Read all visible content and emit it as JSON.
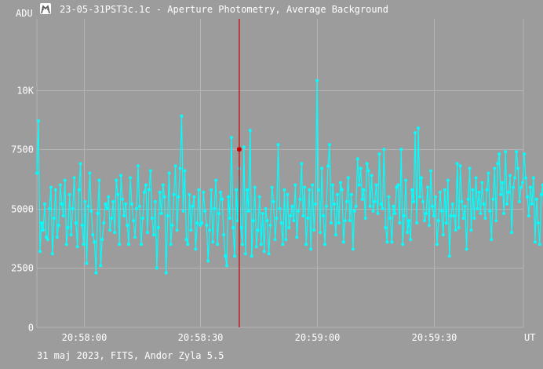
{
  "window": {
    "title": "23-05-31PST3c.1c - Aperture Photometry, Average Background",
    "icon": "telescope-app-icon"
  },
  "footer": {
    "caption": "31 maj 2023, FITS, Andor Zyla 5.5"
  },
  "colors": {
    "background": "#9c9c9c",
    "grid": "#b4b4b4",
    "series": "#00ffff",
    "cursor": "#cc0000"
  },
  "chart_data": {
    "type": "line",
    "title": "",
    "xlabel": "UT",
    "ylabel": "ADU",
    "xlim": [
      "20:57:48",
      "20:59:53"
    ],
    "ylim": [
      0,
      13000
    ],
    "grid": true,
    "x_ticks": [
      "20:58:00",
      "20:58:30",
      "20:59:00",
      "20:59:30"
    ],
    "y_ticks": [
      {
        "value": 0,
        "label": "0"
      },
      {
        "value": 2500,
        "label": "2500"
      },
      {
        "value": 5000,
        "label": "5000"
      },
      {
        "value": 7500,
        "label": "7500"
      },
      {
        "value": 10000,
        "label": "10K"
      }
    ],
    "cursor": {
      "x": "20:58:40",
      "y": 7500
    },
    "series": [
      {
        "x_start": "20:57:48",
        "x_step_seconds": 0.4,
        "values": [
          6500,
          8700,
          3200,
          4400,
          4100,
          5200,
          3800,
          3700,
          5000,
          5900,
          3100,
          4600,
          5800,
          3800,
          4300,
          6000,
          5200,
          4700,
          6200,
          3500,
          4200,
          5600,
          3900,
          5000,
          6300,
          4400,
          3400,
          5800,
          6900,
          4300,
          3500,
          5300,
          2700,
          5100,
          6500,
          4900,
          3900,
          3600,
          2300,
          4800,
          6200,
          2600,
          3700,
          4400,
          5200,
          5000,
          5500,
          4100,
          4600,
          5300,
          4000,
          6200,
          5600,
          3500,
          6400,
          5400,
          4700,
          5200,
          4300,
          3500,
          6300,
          5200,
          4500,
          3800,
          5000,
          6800,
          5100,
          3500,
          4600,
          5700,
          6000,
          4000,
          5800,
          6600,
          4600,
          3900,
          5300,
          2500,
          4200,
          5700,
          4800,
          6000,
          5500,
          2300,
          4700,
          6500,
          3500,
          4300,
          5600,
          6800,
          4100,
          5500,
          6700,
          8900,
          4900,
          6600,
          3700,
          3500,
          5600,
          4100,
          5100,
          5500,
          3300,
          4400,
          5800,
          4300,
          4400,
          5700,
          4900,
          4300,
          2800,
          4100,
          5800,
          3600,
          5000,
          6200,
          3500,
          4800,
          5700,
          5400,
          3900,
          3000,
          2600,
          5500,
          4600,
          8000,
          4200,
          3000,
          5800,
          4500,
          6700,
          4200,
          3500,
          7600,
          3100,
          5800,
          4900,
          8300,
          3000,
          4500,
          5900,
          3400,
          4100,
          5500,
          3500,
          4800,
          3200,
          5000,
          4500,
          3100,
          4300,
          5900,
          5300,
          3700,
          4600,
          7700,
          5000,
          4400,
          3500,
          5800,
          3700,
          5600,
          4200,
          4700,
          5100,
          4500,
          6000,
          3800,
          4900,
          5400,
          6900,
          4700,
          5900,
          3500,
          4600,
          5800,
          3300,
          6000,
          4100,
          5200,
          10400,
          5800,
          4000,
          6700,
          4700,
          3500,
          5100,
          6800,
          7700,
          4400,
          6000,
          5200,
          3900,
          5600,
          4400,
          6100,
          5800,
          3600,
          4500,
          5300,
          6300,
          4500,
          5600,
          3300,
          4900,
          5100,
          7100,
          6000,
          6700,
          5400,
          5800,
          4600,
          6900,
          6600,
          5100,
          6400,
          4900,
          5300,
          6000,
          4800,
          7300,
          5200,
          5000,
          7500,
          4200,
          3600,
          5500,
          4600,
          3600,
          5100,
          4800,
          5900,
          6000,
          4400,
          7500,
          3500,
          4700,
          6200,
          4000,
          4500,
          3700,
          5800,
          5300,
          8200,
          4400,
          8400,
          5500,
          6300,
          5300,
          4500,
          4800,
          5900,
          4300,
          6600,
          5100,
          4700,
          5500,
          3500,
          4500,
          5700,
          4900,
          3900,
          5800,
          4400,
          6200,
          3000,
          4700,
          5200,
          4700,
          4100,
          6900,
          4200,
          6800,
          5300,
          4600,
          5100,
          3300,
          5400,
          6700,
          4100,
          5800,
          4600,
          6300,
          5000,
          5700,
          4800,
          6100,
          5200,
          4600,
          5800,
          6500,
          4900,
          3700,
          5400,
          6700,
          4500,
          6900,
          7300,
          5600,
          6100,
          4800,
          7400,
          5200,
          5700,
          6400,
          4000,
          5900,
          6300,
          7400,
          6700,
          5300,
          5900,
          6100,
          7300,
          6300,
          5500,
          4700,
          5900,
          5200,
          6300,
          3600,
          5400,
          4400,
          3500,
          5600,
          6000,
          3600,
          6300,
          8200,
          7900,
          5700,
          8900,
          4200,
          6300,
          3600,
          5000,
          4600,
          2800,
          4000,
          5500,
          6100,
          4500,
          5800,
          4200,
          6600,
          5700,
          4800,
          5900,
          3500,
          6800,
          6000,
          4500,
          5300,
          3300,
          4600,
          5400,
          5000,
          4800,
          3700,
          6200,
          4800,
          5600,
          6100,
          4600,
          4300,
          5300,
          4600,
          6400,
          7600,
          5400,
          3600,
          5100,
          4700,
          6600,
          4800,
          5800,
          3500,
          4600,
          4000,
          6400,
          5200,
          7400,
          4800,
          4200,
          4400,
          5600,
          3800,
          6900,
          4500,
          5100,
          3300,
          4900,
          5300,
          5300,
          5800,
          6500,
          5200,
          6000,
          3700,
          4600,
          5700,
          5200,
          4300,
          5000,
          3900,
          5900,
          5000,
          4800,
          5800,
          4800,
          2800,
          5000,
          6300,
          5200,
          4200,
          5400,
          4900,
          5700,
          6500,
          4300,
          5200,
          6100,
          4900,
          8700,
          4600,
          5400,
          5800,
          5500,
          6300,
          4700,
          5600,
          5100,
          6300,
          4800,
          5700,
          8900,
          6600,
          5300,
          4900,
          4000,
          5500,
          3700,
          6100,
          4500,
          5600,
          5300,
          4600,
          3500,
          5400,
          4200,
          5800,
          3700,
          4700,
          5300,
          6100,
          3600,
          5000,
          6000,
          3900,
          5800,
          5600,
          7200,
          4500,
          6700,
          5100,
          3800,
          5800,
          8100,
          4200,
          6200,
          3300,
          5400,
          2600,
          4400,
          7500,
          5700,
          6900,
          4100,
          5200,
          5400,
          5600,
          3300,
          5800,
          4500,
          5300,
          4000,
          5900,
          5600,
          3700,
          6100,
          3900,
          4700,
          5500,
          3800,
          6200,
          4900,
          5800,
          4700,
          4200,
          5400,
          6600,
          4700,
          5600,
          3800,
          4300,
          5800,
          2700,
          6100,
          4600,
          5300,
          6800,
          5100,
          4100,
          6300,
          5500,
          3900,
          5600,
          4400,
          6100,
          3700,
          2900,
          5200,
          6400,
          4900,
          5700,
          3900,
          5500,
          4400,
          6400,
          5800,
          3700,
          4900,
          8800,
          5000,
          4400,
          3600,
          5400,
          4700,
          6100,
          4200,
          4800,
          3300,
          6800,
          4300,
          3900,
          5100,
          4400,
          5800,
          3500,
          3400,
          5300,
          6000,
          6700,
          3700,
          2800,
          4900,
          5100,
          5500,
          3700,
          4300,
          5800,
          5900
        ]
      }
    ]
  }
}
